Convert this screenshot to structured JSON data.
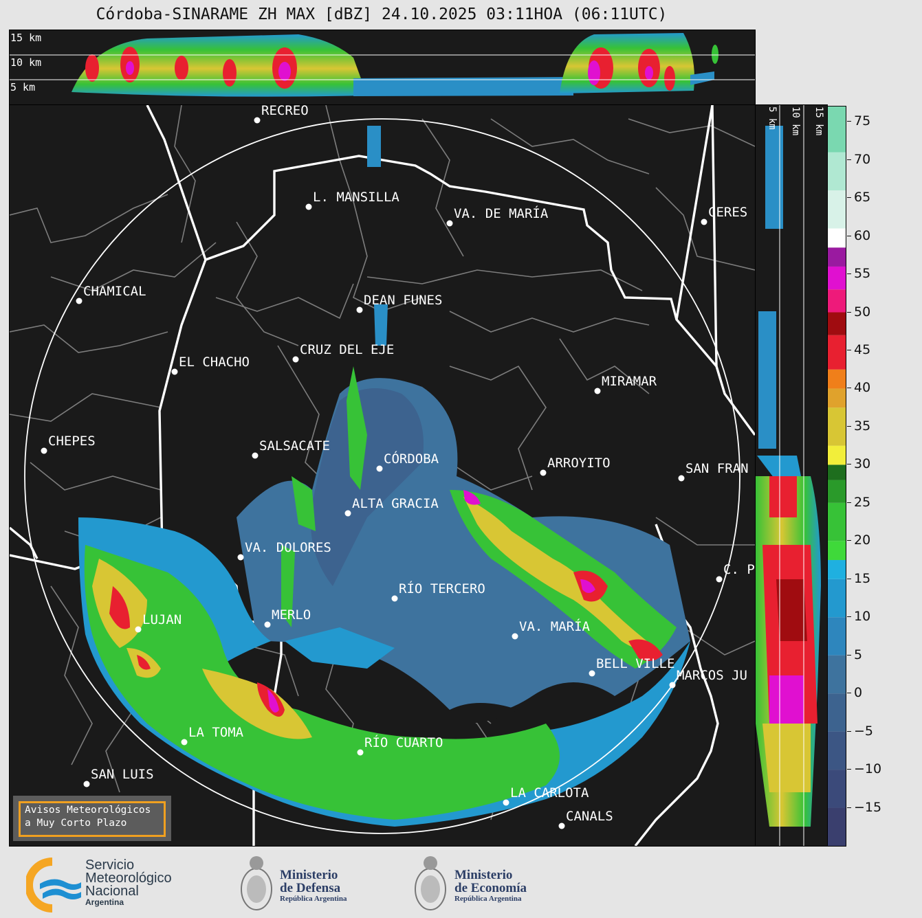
{
  "title": "Córdoba-SINARAME ZH MAX [dBZ] 24.10.2025 03:11HOA (06:11UTC)",
  "top_panel": {
    "height_labels": [
      "15 km",
      "10 km",
      "5 km"
    ]
  },
  "side_panel": {
    "height_labels": [
      "5 km",
      "10 km",
      "15 km"
    ]
  },
  "colorbar": {
    "unit": "dBZ",
    "ticks": [
      "75",
      "70",
      "65",
      "60",
      "55",
      "50",
      "45",
      "40",
      "35",
      "30",
      "25",
      "20",
      "15",
      "10",
      "5",
      "0",
      "−5",
      "−10",
      "−15"
    ],
    "tick_values": [
      75,
      70,
      65,
      60,
      55,
      50,
      45,
      40,
      35,
      30,
      25,
      20,
      15,
      10,
      5,
      0,
      -5,
      -10,
      -15
    ],
    "range": [
      -20,
      77
    ],
    "colors": [
      {
        "from": -20,
        "to": -15,
        "color": "#3a3f6e"
      },
      {
        "from": -15,
        "to": -10,
        "color": "#3b4a7a"
      },
      {
        "from": -10,
        "to": -5,
        "color": "#3c5684"
      },
      {
        "from": -5,
        "to": 0,
        "color": "#3d638f"
      },
      {
        "from": 0,
        "to": 5,
        "color": "#3e739e"
      },
      {
        "from": 5,
        "to": 10,
        "color": "#2e86bd"
      },
      {
        "from": 10,
        "to": 15,
        "color": "#2399cf"
      },
      {
        "from": 15,
        "to": 17.5,
        "color": "#1fb0e0"
      },
      {
        "from": 17.5,
        "to": 20,
        "color": "#3fd93a"
      },
      {
        "from": 20,
        "to": 25,
        "color": "#37c237"
      },
      {
        "from": 25,
        "to": 28,
        "color": "#2a9a2a"
      },
      {
        "from": 28,
        "to": 30,
        "color": "#1e6e1e"
      },
      {
        "from": 30,
        "to": 32.5,
        "color": "#f2ee3a"
      },
      {
        "from": 32.5,
        "to": 37.5,
        "color": "#d8c634"
      },
      {
        "from": 37.5,
        "to": 40,
        "color": "#e0a22c"
      },
      {
        "from": 40,
        "to": 42.5,
        "color": "#f07f1a"
      },
      {
        "from": 42.5,
        "to": 47,
        "color": "#e82030"
      },
      {
        "from": 47,
        "to": 50,
        "color": "#a00c10"
      },
      {
        "from": 50,
        "to": 53,
        "color": "#ee1a7a"
      },
      {
        "from": 53,
        "to": 56,
        "color": "#e010d0"
      },
      {
        "from": 56,
        "to": 58.5,
        "color": "#9a1aa0"
      },
      {
        "from": 58.5,
        "to": 61,
        "color": "#ffffff"
      },
      {
        "from": 61,
        "to": 66,
        "color": "#d8f2e8"
      },
      {
        "from": 66,
        "to": 71,
        "color": "#b0e8d2"
      },
      {
        "from": 71,
        "to": 77,
        "color": "#7ad8b0"
      }
    ]
  },
  "cities": [
    {
      "name": "RECREO"
    },
    {
      "name": "L. MANSILLA"
    },
    {
      "name": "VA. DE MARÍA"
    },
    {
      "name": "CERES"
    },
    {
      "name": "CHAMICAL"
    },
    {
      "name": "DEAN FUNES"
    },
    {
      "name": "CRUZ DEL EJE"
    },
    {
      "name": "EL CHACHO"
    },
    {
      "name": "MIRAMAR"
    },
    {
      "name": "CHEPES"
    },
    {
      "name": "SALSACATE"
    },
    {
      "name": "CÓRDOBA"
    },
    {
      "name": "ARROYITO"
    },
    {
      "name": "SAN FRAN"
    },
    {
      "name": "ALTA GRACIA"
    },
    {
      "name": "VA. DOLORES"
    },
    {
      "name": "C. P"
    },
    {
      "name": "RÍO TERCERO"
    },
    {
      "name": "LUJAN"
    },
    {
      "name": "MERLO"
    },
    {
      "name": "VA. MARÍA"
    },
    {
      "name": "BELL VILLE"
    },
    {
      "name": "MARCOS JU"
    },
    {
      "name": "LA TOMA"
    },
    {
      "name": "RÍO CUARTO"
    },
    {
      "name": "SAN LUIS"
    },
    {
      "name": "LA CARLOTA"
    },
    {
      "name": "CANALS"
    }
  ],
  "notice": {
    "line1": "Avisos Meteorológicos",
    "line2": "a Muy Corto Plazo"
  },
  "logos": {
    "smn": {
      "line1": "Servicio",
      "line2": "Meteorológico",
      "line3": "Nacional",
      "country": "Argentina"
    },
    "defensa": {
      "line1": "Ministerio",
      "line2": "de Defensa",
      "sub": "República Argentina"
    },
    "economia": {
      "line1": "Ministerio",
      "line2": "de Economía",
      "sub": "República Argentina"
    }
  }
}
